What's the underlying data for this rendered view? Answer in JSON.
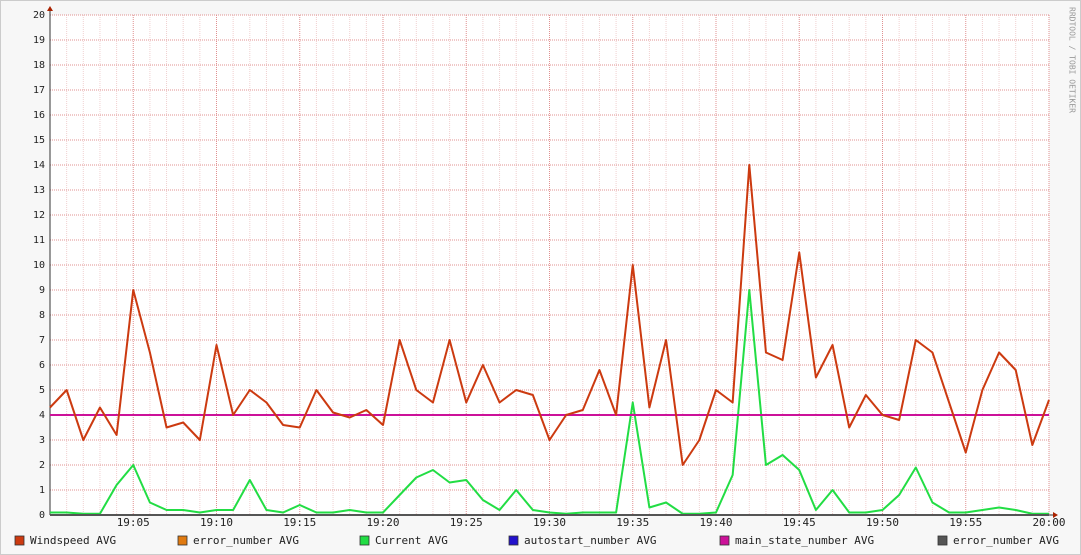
{
  "chart_data": {
    "type": "line",
    "watermark": "RRDTOOL / TOBI OETIKER",
    "categories": [
      null,
      null,
      null,
      null,
      null,
      "19:05",
      null,
      null,
      null,
      null,
      "19:10",
      null,
      null,
      null,
      null,
      "19:15",
      null,
      null,
      null,
      null,
      "19:20",
      null,
      null,
      null,
      null,
      "19:25",
      null,
      null,
      null,
      null,
      "19:30",
      null,
      null,
      null,
      null,
      "19:35",
      null,
      null,
      null,
      null,
      "19:40",
      null,
      null,
      null,
      null,
      "19:45",
      null,
      null,
      null,
      null,
      "19:50",
      null,
      null,
      null,
      null,
      "19:55",
      null,
      null,
      null,
      null,
      "20:00"
    ],
    "ylim": [
      0,
      20
    ],
    "yticks": [
      0,
      1,
      2,
      3,
      4,
      5,
      6,
      7,
      8,
      9,
      10,
      11,
      12,
      13,
      14,
      15,
      16,
      17,
      18,
      19,
      20
    ],
    "grid": true,
    "series": [
      {
        "name": "Windspeed AVG",
        "color": "#cc3a10",
        "values": [
          4.3,
          5.0,
          3.0,
          4.3,
          3.2,
          9.0,
          6.5,
          3.5,
          3.7,
          3.0,
          6.8,
          4.0,
          5.0,
          4.5,
          3.6,
          3.5,
          5.0,
          4.1,
          3.9,
          4.2,
          3.6,
          7.0,
          5.0,
          4.5,
          7.0,
          4.5,
          6.0,
          4.5,
          5.0,
          4.8,
          3.0,
          4.0,
          4.2,
          5.8,
          4.0,
          10.0,
          4.3,
          7.0,
          2.0,
          3.0,
          5.0,
          4.5,
          14.0,
          6.5,
          6.2,
          10.5,
          5.5,
          6.8,
          3.5,
          4.8,
          4.0,
          3.8,
          7.0,
          6.5,
          4.5,
          2.5,
          5.0,
          6.5,
          5.8,
          2.8,
          4.6
        ]
      },
      {
        "name": "error_number AVG",
        "color": "#e07a10",
        "values": [
          0,
          0,
          0,
          0,
          0,
          0,
          0,
          0,
          0,
          0,
          0,
          0,
          0,
          0,
          0,
          0,
          0,
          0,
          0,
          0,
          0,
          0,
          0,
          0,
          0,
          0,
          0,
          0,
          0,
          0,
          0,
          0,
          0,
          0,
          0,
          0,
          0,
          0,
          0,
          0,
          0,
          0,
          0,
          0,
          0,
          0,
          0,
          0,
          0,
          0,
          0,
          0,
          0,
          0,
          0,
          0,
          0,
          0,
          0,
          0,
          0
        ]
      },
      {
        "name": "Current AVG",
        "color": "#22dd44",
        "values": [
          0.1,
          0.1,
          0.05,
          0.05,
          1.2,
          2.0,
          0.5,
          0.2,
          0.2,
          0.1,
          0.2,
          0.2,
          1.4,
          0.2,
          0.1,
          0.4,
          0.1,
          0.1,
          0.2,
          0.1,
          0.1,
          0.8,
          1.5,
          1.8,
          1.3,
          1.4,
          0.6,
          0.2,
          1.0,
          0.2,
          0.1,
          0.05,
          0.1,
          0.1,
          0.1,
          4.5,
          0.3,
          0.5,
          0.05,
          0.05,
          0.1,
          1.6,
          9.0,
          2.0,
          2.4,
          1.8,
          0.2,
          1.0,
          0.1,
          0.1,
          0.2,
          0.8,
          1.9,
          0.5,
          0.1,
          0.1,
          0.2,
          0.3,
          0.2,
          0.05,
          0.05
        ]
      },
      {
        "name": "autostart_number AVG",
        "color": "#2211cc",
        "values": [
          0,
          0,
          0,
          0,
          0,
          0,
          0,
          0,
          0,
          0,
          0,
          0,
          0,
          0,
          0,
          0,
          0,
          0,
          0,
          0,
          0,
          0,
          0,
          0,
          0,
          0,
          0,
          0,
          0,
          0,
          0,
          0,
          0,
          0,
          0,
          0,
          0,
          0,
          0,
          0,
          0,
          0,
          0,
          0,
          0,
          0,
          0,
          0,
          0,
          0,
          0,
          0,
          0,
          0,
          0,
          0,
          0,
          0,
          0,
          0,
          0
        ]
      },
      {
        "name": "main_state_number AVG",
        "color": "#cc1199",
        "values": [
          4,
          4,
          4,
          4,
          4,
          4,
          4,
          4,
          4,
          4,
          4,
          4,
          4,
          4,
          4,
          4,
          4,
          4,
          4,
          4,
          4,
          4,
          4,
          4,
          4,
          4,
          4,
          4,
          4,
          4,
          4,
          4,
          4,
          4,
          4,
          4,
          4,
          4,
          4,
          4,
          4,
          4,
          4,
          4,
          4,
          4,
          4,
          4,
          4,
          4,
          4,
          4,
          4,
          4,
          4,
          4,
          4,
          4,
          4,
          4,
          4
        ]
      },
      {
        "name": "error_number AVG",
        "color": "#555555",
        "values": [
          0,
          0,
          0,
          0,
          0,
          0,
          0,
          0,
          0,
          0,
          0,
          0,
          0,
          0,
          0,
          0,
          0,
          0,
          0,
          0,
          0,
          0,
          0,
          0,
          0,
          0,
          0,
          0,
          0,
          0,
          0,
          0,
          0,
          0,
          0,
          0,
          0,
          0,
          0,
          0,
          0,
          0,
          0,
          0,
          0,
          0,
          0,
          0,
          0,
          0,
          0,
          0,
          0,
          0,
          0,
          0,
          0,
          0,
          0,
          0,
          0
        ]
      }
    ]
  }
}
